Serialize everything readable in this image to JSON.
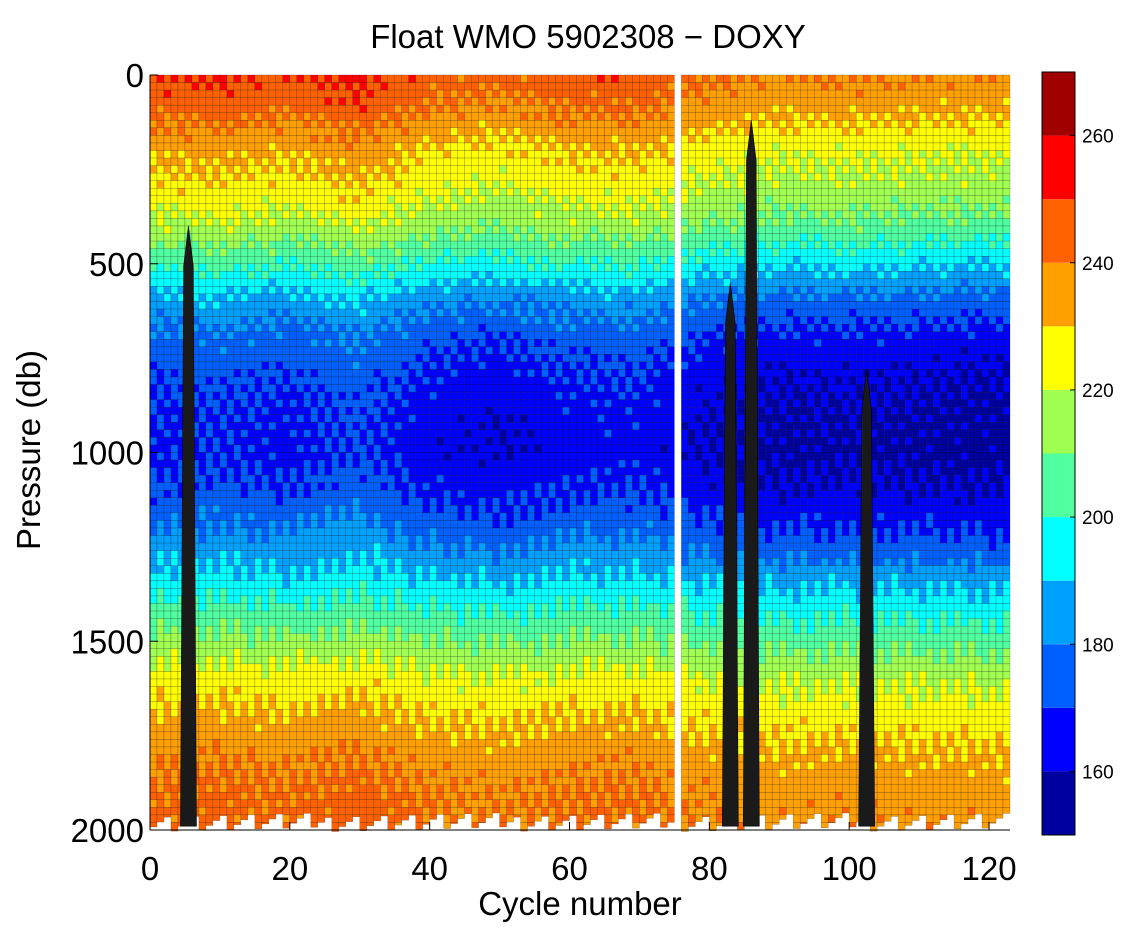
{
  "chart_data": {
    "type": "heatmap",
    "title": "Float WMO 5902308 − DOXY",
    "xlabel": "Cycle number",
    "ylabel": "Pressure (db)",
    "xlim": [
      0,
      123
    ],
    "ylim": [
      0,
      2000
    ],
    "y_reversed": true,
    "x_ticks": [
      0,
      20,
      40,
      60,
      80,
      100,
      120
    ],
    "y_ticks": [
      0,
      500,
      1000,
      1500,
      2000
    ],
    "colorbar": {
      "range": [
        150,
        270
      ],
      "ticks": [
        160,
        180,
        200,
        220,
        240,
        260
      ],
      "levels": [
        {
          "from": 150,
          "to": 160,
          "color": "#00009f"
        },
        {
          "from": 160,
          "to": 170,
          "color": "#0000ff"
        },
        {
          "from": 170,
          "to": 180,
          "color": "#0060ff"
        },
        {
          "from": 180,
          "to": 190,
          "color": "#00a0ff"
        },
        {
          "from": 190,
          "to": 200,
          "color": "#00ffff"
        },
        {
          "from": 200,
          "to": 210,
          "color": "#50ffa0"
        },
        {
          "from": 210,
          "to": 220,
          "color": "#a0ff50"
        },
        {
          "from": 220,
          "to": 230,
          "color": "#ffff00"
        },
        {
          "from": 230,
          "to": 240,
          "color": "#ffa000"
        },
        {
          "from": 240,
          "to": 250,
          "color": "#ff6000"
        },
        {
          "from": 250,
          "to": 260,
          "color": "#ff0000"
        },
        {
          "from": 260,
          "to": 270,
          "color": "#a00000"
        }
      ]
    },
    "depth_profile": [
      {
        "pressure": 0,
        "doxy": 245
      },
      {
        "pressure": 100,
        "doxy": 238
      },
      {
        "pressure": 200,
        "doxy": 228
      },
      {
        "pressure": 300,
        "doxy": 222
      },
      {
        "pressure": 400,
        "doxy": 213
      },
      {
        "pressure": 500,
        "doxy": 198
      },
      {
        "pressure": 600,
        "doxy": 182
      },
      {
        "pressure": 700,
        "doxy": 172
      },
      {
        "pressure": 800,
        "doxy": 167
      },
      {
        "pressure": 900,
        "doxy": 164
      },
      {
        "pressure": 1000,
        "doxy": 163
      },
      {
        "pressure": 1100,
        "doxy": 167
      },
      {
        "pressure": 1200,
        "doxy": 175
      },
      {
        "pressure": 1300,
        "doxy": 186
      },
      {
        "pressure": 1400,
        "doxy": 198
      },
      {
        "pressure": 1500,
        "doxy": 210
      },
      {
        "pressure": 1600,
        "doxy": 222
      },
      {
        "pressure": 1700,
        "doxy": 229
      },
      {
        "pressure": 1800,
        "doxy": 235
      },
      {
        "pressure": 1900,
        "doxy": 239
      },
      {
        "pressure": 2000,
        "doxy": 241
      }
    ],
    "cycle_anomaly": [
      {
        "cycle": 0,
        "offset": 4
      },
      {
        "cycle": 10,
        "offset": 6
      },
      {
        "cycle": 20,
        "offset": 3
      },
      {
        "cycle": 30,
        "offset": 8
      },
      {
        "cycle": 40,
        "offset": 1
      },
      {
        "cycle": 50,
        "offset": -2
      },
      {
        "cycle": 60,
        "offset": 2
      },
      {
        "cycle": 70,
        "offset": 3
      },
      {
        "cycle": 80,
        "offset": -3
      },
      {
        "cycle": 90,
        "offset": -6
      },
      {
        "cycle": 100,
        "offset": -5
      },
      {
        "cycle": 110,
        "offset": -6
      },
      {
        "cycle": 123,
        "offset": -7
      }
    ],
    "missing_profile_cycles": [
      76
    ],
    "spike_cycles": [
      5.5,
      83,
      86,
      102.5
    ]
  }
}
